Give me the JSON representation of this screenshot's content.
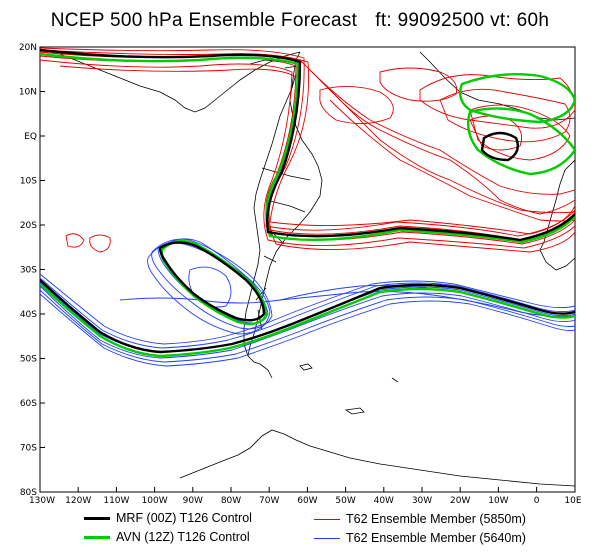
{
  "title": {
    "main": "NCEP 500 hPa Ensemble Forecast",
    "forecast": "ft: 99092500  vt: 60h"
  },
  "axes": {
    "lat_labels": [
      "20N",
      "10N",
      "EQ",
      "10S",
      "20S",
      "30S",
      "40S",
      "50S",
      "60S",
      "70S",
      "80S"
    ],
    "lon_labels": [
      "130W",
      "120W",
      "110W",
      "100W",
      "90W",
      "80W",
      "70W",
      "60W",
      "50W",
      "40W",
      "30W",
      "20W",
      "10W",
      "0",
      "10E"
    ]
  },
  "legend": [
    {
      "label": "MRF (00Z) T126 Control",
      "color": "#000000"
    },
    {
      "label": "AVN (12Z) T126 Control",
      "color": "#00cc00"
    },
    {
      "label": "T62 Ensemble Member (5850m)",
      "color": "#e60000"
    },
    {
      "label": "T62 Ensemble Member (5640m)",
      "color": "#2040ff"
    }
  ],
  "colors": {
    "mrf": "#000000",
    "avn": "#00cc00",
    "ens_5850": "#e60000",
    "ens_5640": "#2040ff",
    "land": "#000000"
  }
}
